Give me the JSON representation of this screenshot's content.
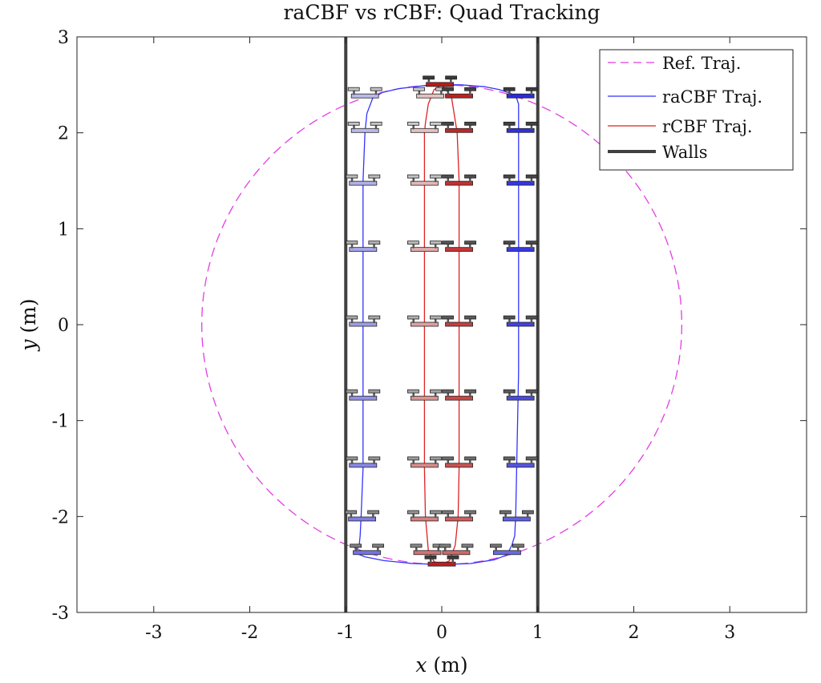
{
  "chart_data": {
    "type": "line",
    "title": "raCBF vs rCBF: Quad Tracking",
    "xlabel": {
      "var": "x",
      "unit": " (m)"
    },
    "ylabel": {
      "var": "y",
      "unit": " (m)"
    },
    "xlim": [
      -3.8,
      3.8
    ],
    "ylim": [
      -3,
      3
    ],
    "xticks": [
      -3,
      -2,
      -1,
      0,
      1,
      2,
      3
    ],
    "yticks": [
      -3,
      -2,
      -1,
      0,
      1,
      2,
      3
    ],
    "xtick_labels": [
      "-3",
      "-2",
      "-1",
      "0",
      "1",
      "2",
      "3"
    ],
    "ytick_labels": [
      "-3",
      "-2",
      "-1",
      "0",
      "1",
      "2",
      "3"
    ],
    "grid": false,
    "legend_position": "top-right",
    "legend": [
      "Ref. Traj.",
      "raCBF Traj.",
      "rCBF Traj.",
      "Walls"
    ],
    "colors": {
      "ref": "#e23ee2",
      "racbf": "#3333ff",
      "rcbf": "#dd2222",
      "walls": "#404040",
      "quad_outline": "#222222"
    },
    "reference": {
      "shape": "circle",
      "center": [
        0,
        0
      ],
      "radius": 2.5
    },
    "walls_x": [
      -1,
      1
    ],
    "series": [
      {
        "name": "raCBF Traj.",
        "x": [
          0.0,
          -0.2,
          -0.45,
          -0.62,
          -0.72,
          -0.78,
          -0.8,
          -0.82,
          -0.82,
          -0.82,
          -0.82,
          -0.82,
          -0.82,
          -0.82,
          -0.84,
          -0.85,
          -0.86,
          -0.88,
          -0.92,
          -0.9,
          -0.8,
          -0.6,
          -0.3,
          0.0,
          0.3,
          0.55,
          0.68,
          0.73,
          0.76,
          0.77,
          0.78,
          0.79,
          0.8,
          0.8,
          0.8,
          0.8,
          0.8,
          0.8,
          0.8,
          0.8,
          0.78,
          0.72,
          0.6,
          0.45,
          0.2,
          0.0
        ],
        "y": [
          2.5,
          2.49,
          2.46,
          2.42,
          2.36,
          2.2,
          2.0,
          1.5,
          1.0,
          0.5,
          0.0,
          -0.5,
          -1.0,
          -1.5,
          -2.0,
          -2.2,
          -2.3,
          -2.34,
          -2.37,
          -2.38,
          -2.42,
          -2.46,
          -2.49,
          -2.5,
          -2.49,
          -2.45,
          -2.4,
          -2.3,
          -2.2,
          -2.0,
          -1.5,
          -1.0,
          -0.5,
          0.0,
          0.5,
          1.0,
          1.5,
          2.0,
          2.2,
          2.3,
          2.36,
          2.41,
          2.45,
          2.48,
          2.5,
          2.5
        ]
      },
      {
        "name": "rCBF Traj.",
        "x": [
          0.0,
          -0.08,
          -0.14,
          -0.17,
          -0.18,
          -0.18,
          -0.18,
          -0.18,
          -0.18,
          -0.18,
          -0.18,
          -0.18,
          -0.17,
          -0.14,
          -0.08,
          0.0,
          0.08,
          0.14,
          0.16,
          0.17,
          0.18,
          0.18,
          0.18,
          0.18,
          0.18,
          0.18,
          0.18,
          0.16,
          0.1,
          0.0
        ],
        "y": [
          2.5,
          2.45,
          2.3,
          2.1,
          2.0,
          1.5,
          1.0,
          0.5,
          0.0,
          -0.5,
          -1.0,
          -1.5,
          -2.0,
          -2.35,
          -2.47,
          -2.5,
          -2.46,
          -2.3,
          -2.1,
          -2.0,
          -1.5,
          -1.0,
          -0.5,
          0.0,
          0.5,
          1.0,
          1.5,
          2.0,
          2.38,
          2.5
        ]
      }
    ],
    "quad_markers": [
      {
        "x": -0.8,
        "y": 2.38,
        "series": "racbf",
        "shade": 0.25
      },
      {
        "x": -0.8,
        "y": 2.02,
        "series": "racbf",
        "shade": 0.25
      },
      {
        "x": -0.82,
        "y": 1.47,
        "series": "racbf",
        "shade": 0.3
      },
      {
        "x": -0.82,
        "y": 0.78,
        "series": "racbf",
        "shade": 0.35
      },
      {
        "x": -0.82,
        "y": 0.0,
        "series": "racbf",
        "shade": 0.4
      },
      {
        "x": -0.82,
        "y": -0.77,
        "series": "racbf",
        "shade": 0.45
      },
      {
        "x": -0.82,
        "y": -1.47,
        "series": "racbf",
        "shade": 0.5
      },
      {
        "x": -0.83,
        "y": -2.03,
        "series": "racbf",
        "shade": 0.55
      },
      {
        "x": -0.78,
        "y": -2.38,
        "series": "racbf",
        "shade": 0.6
      },
      {
        "x": 0.68,
        "y": -2.38,
        "series": "racbf",
        "shade": 0.65
      },
      {
        "x": 0.78,
        "y": -2.03,
        "series": "racbf",
        "shade": 0.7
      },
      {
        "x": 0.82,
        "y": -1.47,
        "series": "racbf",
        "shade": 0.75
      },
      {
        "x": 0.82,
        "y": -0.77,
        "series": "racbf",
        "shade": 0.8
      },
      {
        "x": 0.82,
        "y": 0.0,
        "series": "racbf",
        "shade": 0.85
      },
      {
        "x": 0.82,
        "y": 0.78,
        "series": "racbf",
        "shade": 0.88
      },
      {
        "x": 0.82,
        "y": 1.47,
        "series": "racbf",
        "shade": 0.9
      },
      {
        "x": 0.82,
        "y": 2.02,
        "series": "racbf",
        "shade": 0.93
      },
      {
        "x": 0.82,
        "y": 2.38,
        "series": "racbf",
        "shade": 0.96
      },
      {
        "x": -0.12,
        "y": 2.38,
        "series": "rcbf",
        "shade": 0.2
      },
      {
        "x": -0.18,
        "y": 2.02,
        "series": "rcbf",
        "shade": 0.2
      },
      {
        "x": -0.18,
        "y": 1.47,
        "series": "rcbf",
        "shade": 0.25
      },
      {
        "x": -0.18,
        "y": 0.78,
        "series": "rcbf",
        "shade": 0.3
      },
      {
        "x": -0.18,
        "y": 0.0,
        "series": "rcbf",
        "shade": 0.35
      },
      {
        "x": -0.18,
        "y": -0.77,
        "series": "rcbf",
        "shade": 0.4
      },
      {
        "x": -0.18,
        "y": -1.47,
        "series": "rcbf",
        "shade": 0.45
      },
      {
        "x": -0.18,
        "y": -2.03,
        "series": "rcbf",
        "shade": 0.5
      },
      {
        "x": -0.15,
        "y": -2.38,
        "series": "rcbf",
        "shade": 0.55
      },
      {
        "x": 0.0,
        "y": -2.5,
        "series": "rcbf",
        "shade": 0.95
      },
      {
        "x": 0.15,
        "y": -2.38,
        "series": "rcbf",
        "shade": 0.6
      },
      {
        "x": 0.18,
        "y": -2.03,
        "series": "rcbf",
        "shade": 0.65
      },
      {
        "x": 0.18,
        "y": -1.47,
        "series": "rcbf",
        "shade": 0.7
      },
      {
        "x": 0.18,
        "y": -0.77,
        "series": "rcbf",
        "shade": 0.75
      },
      {
        "x": 0.18,
        "y": 0.0,
        "series": "rcbf",
        "shade": 0.8
      },
      {
        "x": 0.18,
        "y": 0.78,
        "series": "rcbf",
        "shade": 0.83
      },
      {
        "x": 0.18,
        "y": 1.47,
        "series": "rcbf",
        "shade": 0.86
      },
      {
        "x": 0.18,
        "y": 2.02,
        "series": "rcbf",
        "shade": 0.9
      },
      {
        "x": 0.18,
        "y": 2.38,
        "series": "rcbf",
        "shade": 0.93
      },
      {
        "x": -0.02,
        "y": 2.5,
        "series": "rcbf",
        "shade": 0.97
      }
    ]
  }
}
